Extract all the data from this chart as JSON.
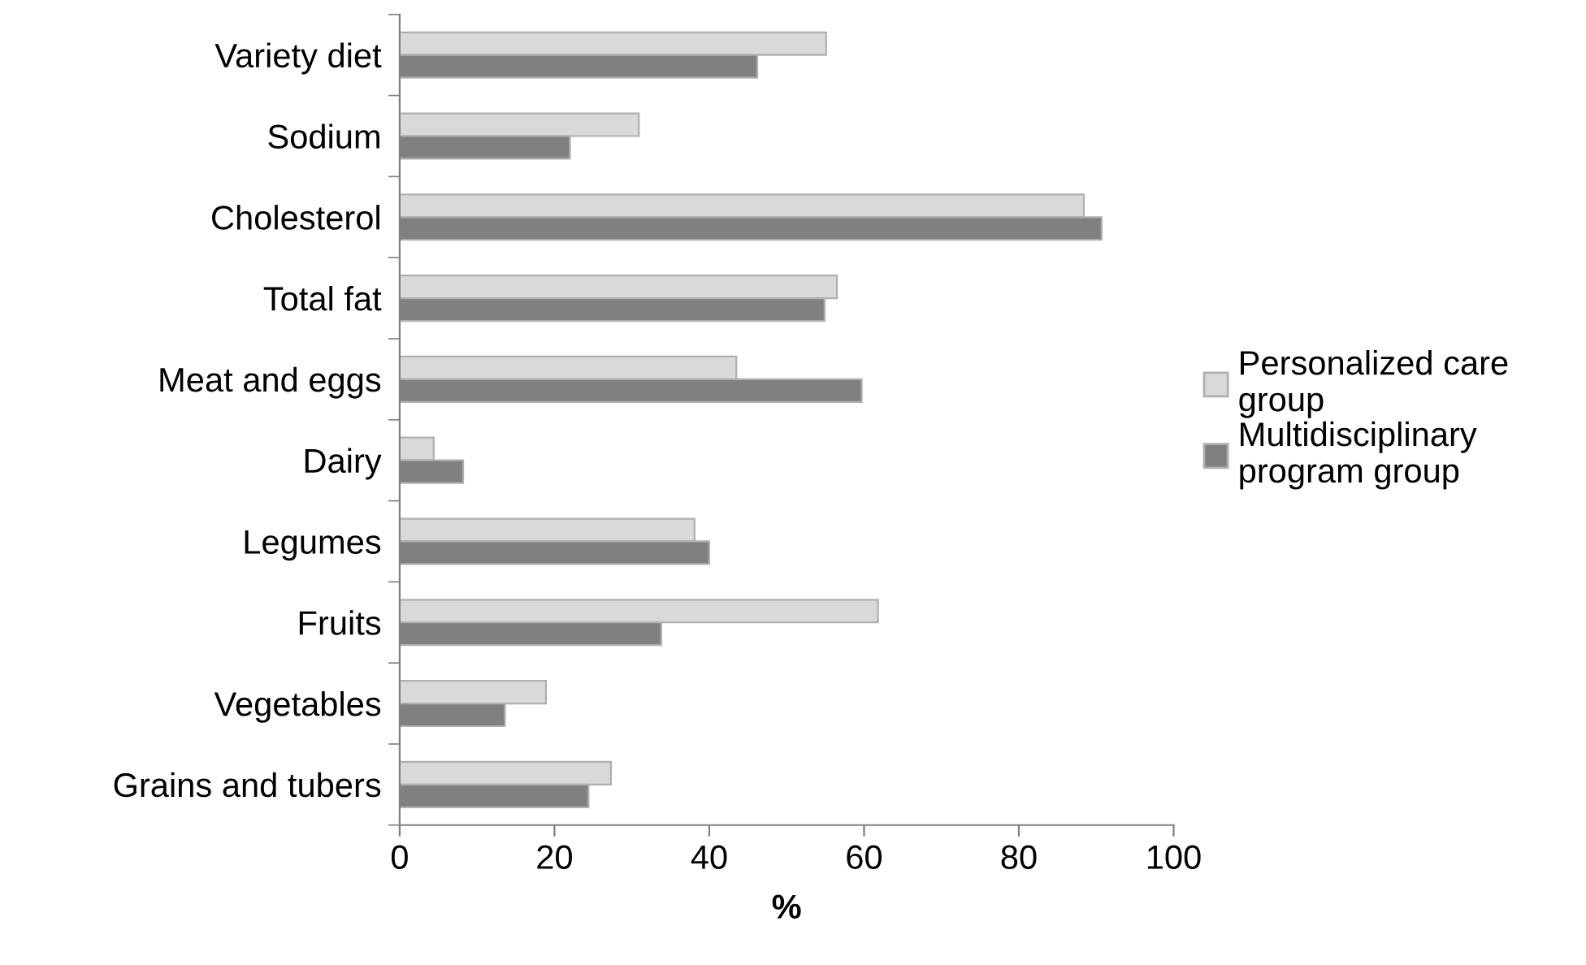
{
  "chart_data": {
    "type": "bar",
    "orientation": "horizontal",
    "xlabel": "%",
    "categories": [
      "Variety diet",
      "Sodium",
      "Cholesterol",
      "Total fat",
      "Meat and eggs",
      "Dairy",
      "Legumes",
      "Fruits",
      "Vegetables",
      "Grains and tubers"
    ],
    "series": [
      {
        "name": "Personalized care group",
        "color": "#d9d9d9",
        "values": [
          55.1,
          30.9,
          88.4,
          56.5,
          43.5,
          4.4,
          38.1,
          61.8,
          18.9,
          27.3
        ]
      },
      {
        "name": "Multidisciplinary program group",
        "color": "#808080",
        "values": [
          46.2,
          22.0,
          90.7,
          54.9,
          59.7,
          8.2,
          40.0,
          33.8,
          13.6,
          24.4
        ]
      }
    ],
    "xlim": [
      0,
      100
    ],
    "xticks": [
      0,
      20,
      40,
      60,
      80,
      100
    ],
    "grid": false,
    "legend": "right"
  }
}
